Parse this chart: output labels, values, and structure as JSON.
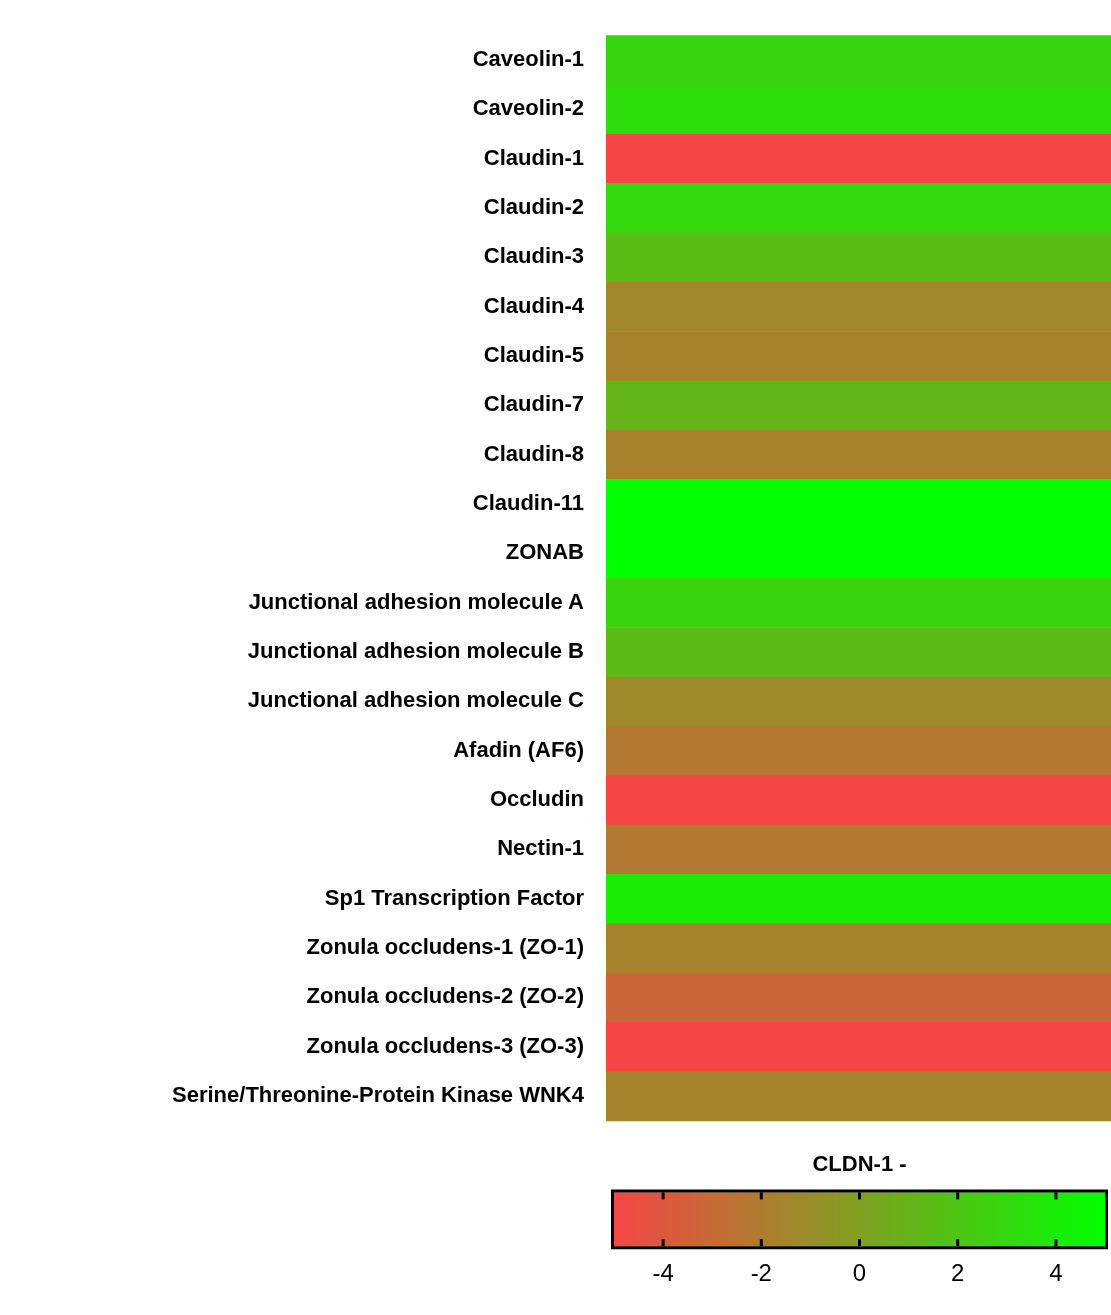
{
  "chart_data": {
    "type": "heatmap",
    "categories": [
      null
    ],
    "y_categories": [
      "Caveolin-1",
      "Caveolin-2",
      "Claudin-1",
      "Claudin-2",
      "Claudin-3",
      "Claudin-4",
      "Claudin-5",
      "Claudin-7",
      "Claudin-8",
      "Claudin-11",
      "ZONAB",
      "Junctional adhesion molecule A",
      "Junctional adhesion molecule B",
      "Junctional adhesion molecule C",
      "Afadin (AF6)",
      "Occludin",
      "Nectin-1",
      "Sp1 Transcription Factor",
      "Zonula occludens-1 (ZO-1)",
      "Zonula occludens-2 (ZO-2)",
      "Zonula occludens-3 (ZO-3)",
      "Serine/Threonine-Protein Kinase WNK4"
    ],
    "cells": [
      [
        2.8
      ],
      [
        3.2
      ],
      [
        -5
      ],
      [
        3
      ],
      [
        1.5
      ],
      [
        -1.4
      ],
      [
        -1.7
      ],
      [
        1.1
      ],
      [
        -1.7
      ],
      [
        5
      ],
      [
        5
      ],
      [
        2.8
      ],
      [
        1.4
      ],
      [
        -1.3
      ],
      [
        -2.2
      ],
      [
        -5
      ],
      [
        -2.2
      ],
      [
        4
      ],
      [
        -1.6
      ],
      [
        -3.2
      ],
      [
        -5
      ],
      [
        -1.6
      ]
    ],
    "clabel": "CLDN-1 -",
    "clim": [
      -5,
      5
    ],
    "cticks": [
      -4,
      -2,
      0,
      2,
      4
    ]
  }
}
